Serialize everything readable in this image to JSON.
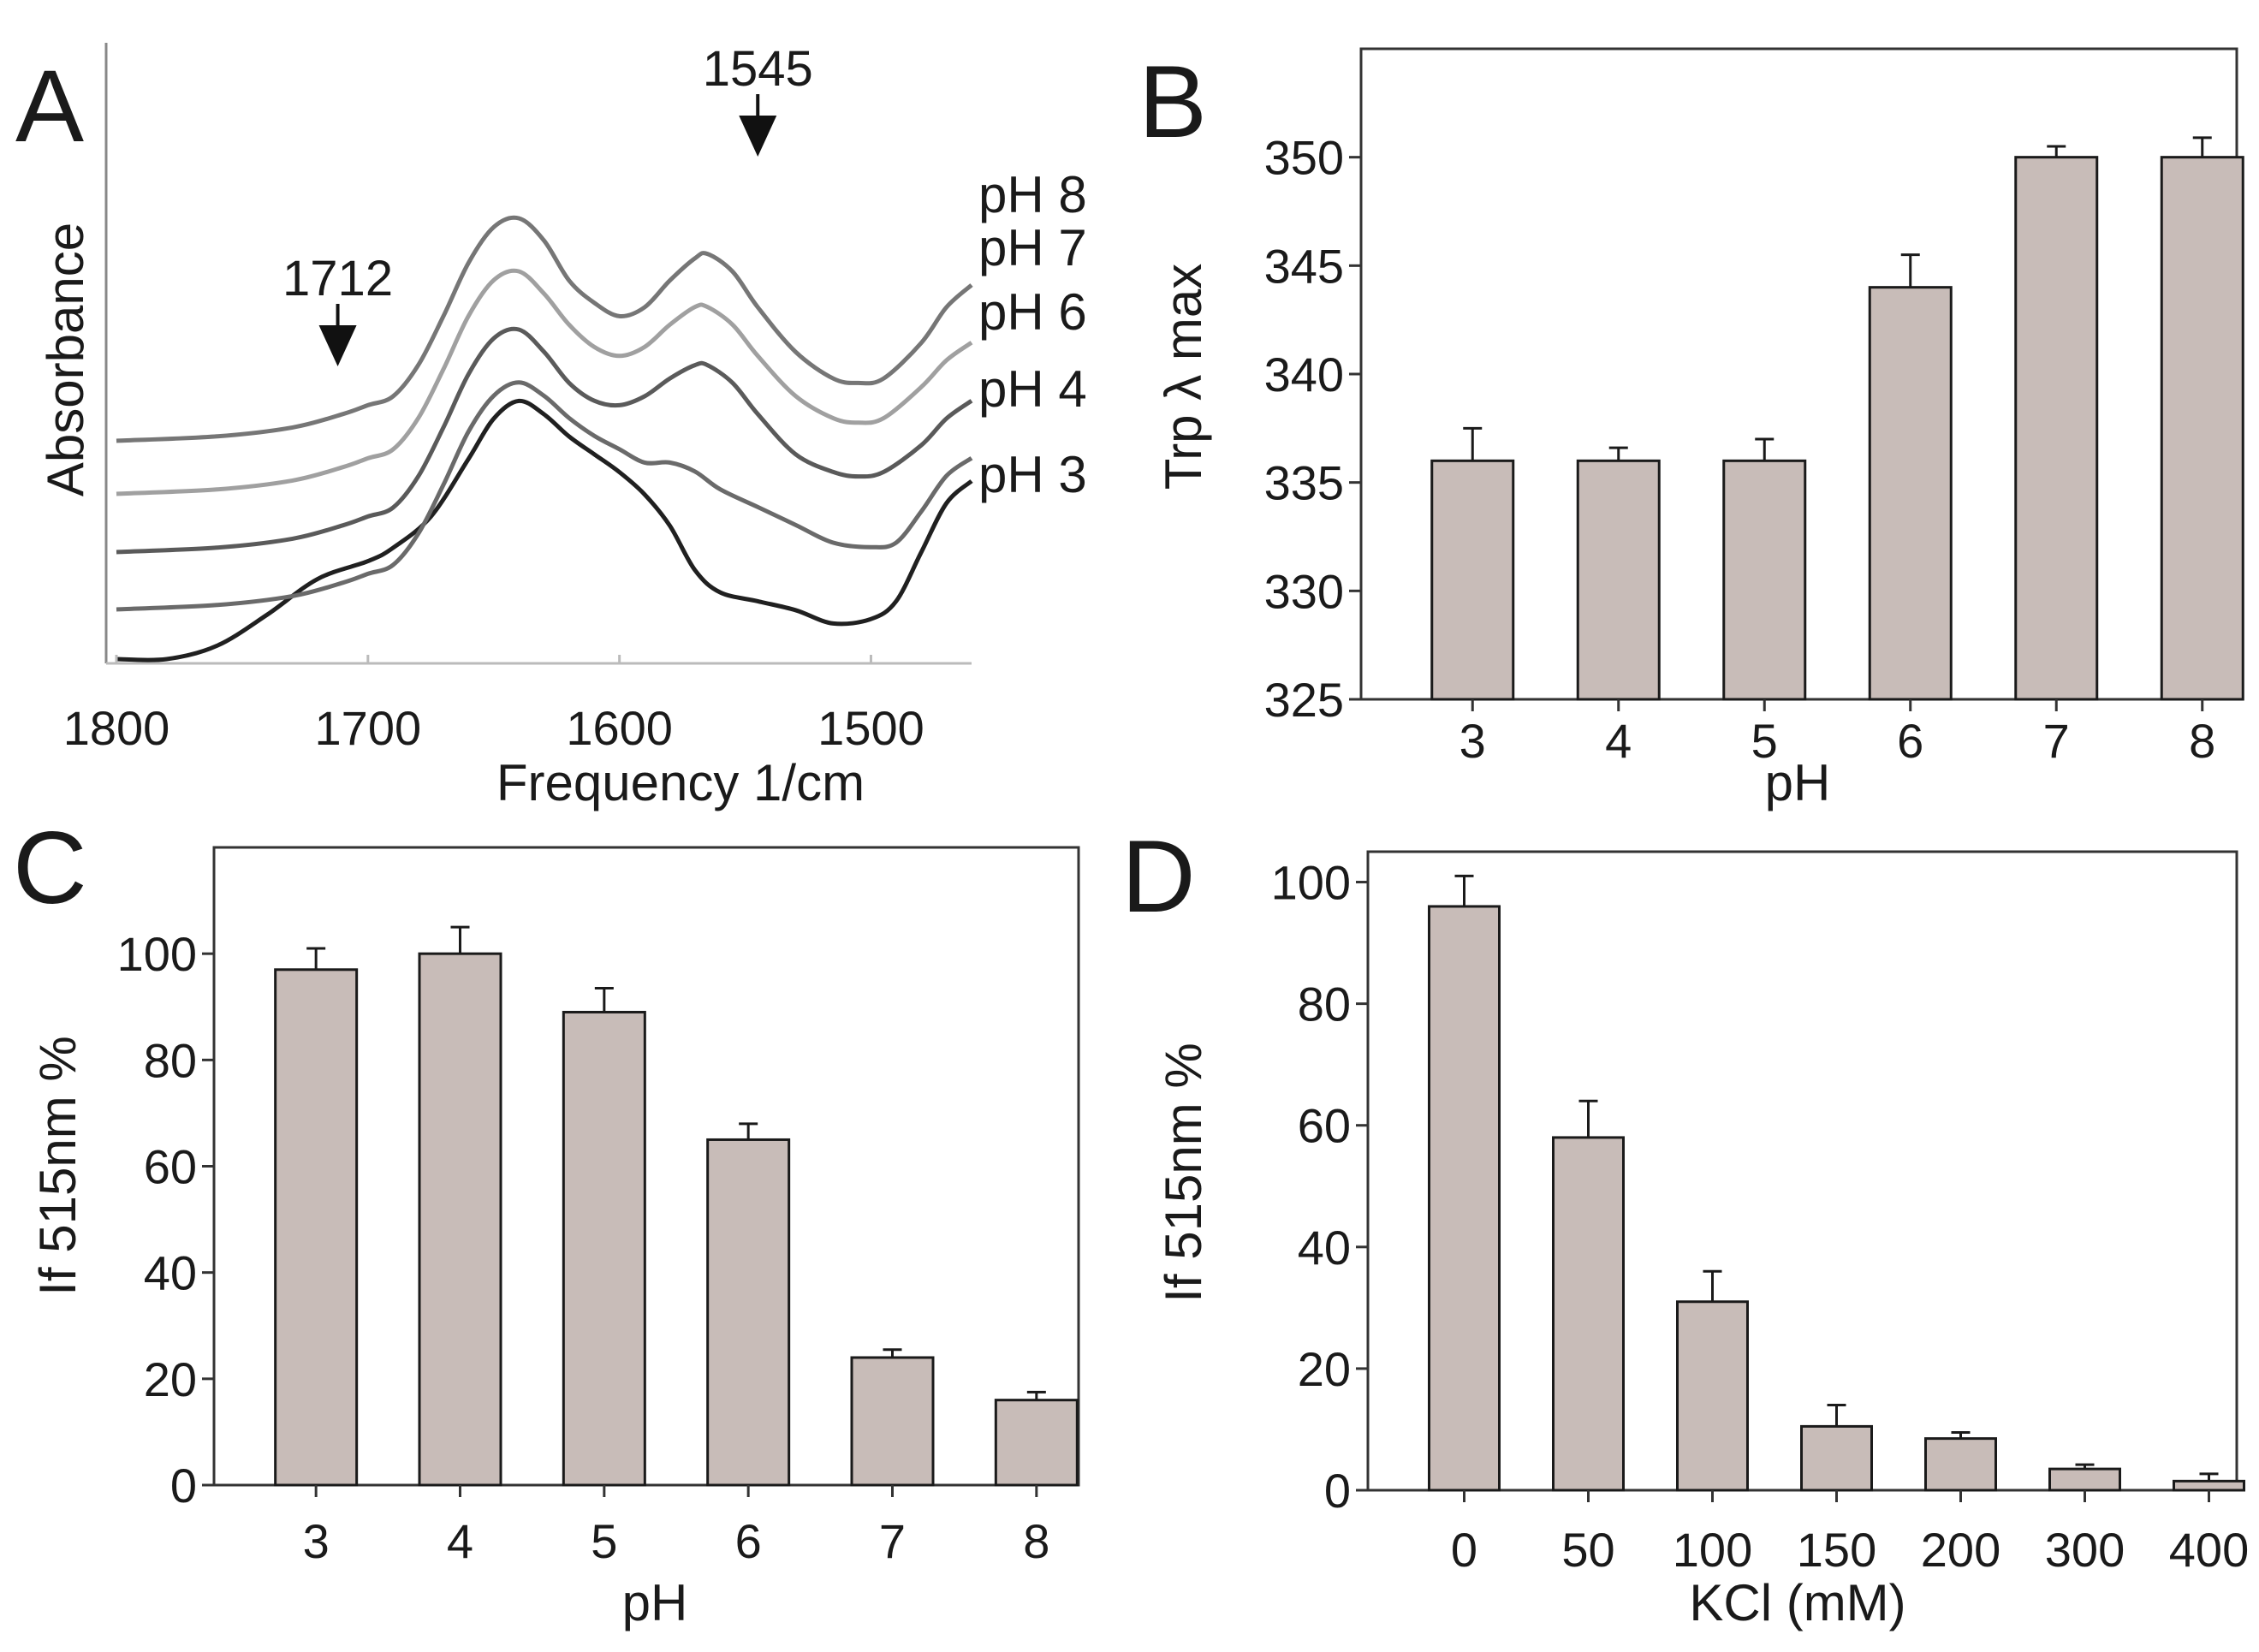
{
  "chart_data": [
    {
      "panel": "A",
      "type": "line",
      "title": "",
      "xlabel": "Frequency 1/cm",
      "ylabel": "Absorbance",
      "xlim": [
        1800,
        1460
      ],
      "x_ticks": [
        "1800",
        "1700",
        "1600",
        "1500"
      ],
      "annotations": [
        {
          "text": "1712",
          "x": 1712
        },
        {
          "text": "1545",
          "x": 1545
        }
      ],
      "series": [
        {
          "name": "pH 3",
          "color": "#202020",
          "points": [
            [
              1800,
              0.0
            ],
            [
              1780,
              0.0
            ],
            [
              1760,
              0.03
            ],
            [
              1740,
              0.1
            ],
            [
              1720,
              0.18
            ],
            [
              1700,
              0.22
            ],
            [
              1690,
              0.25
            ],
            [
              1675,
              0.32
            ],
            [
              1660,
              0.45
            ],
            [
              1650,
              0.54
            ],
            [
              1640,
              0.58
            ],
            [
              1630,
              0.55
            ],
            [
              1620,
              0.5
            ],
            [
              1610,
              0.46
            ],
            [
              1600,
              0.42
            ],
            [
              1590,
              0.37
            ],
            [
              1580,
              0.3
            ],
            [
              1570,
              0.2
            ],
            [
              1560,
              0.15
            ],
            [
              1545,
              0.13
            ],
            [
              1530,
              0.11
            ],
            [
              1515,
              0.08
            ],
            [
              1500,
              0.09
            ],
            [
              1490,
              0.13
            ],
            [
              1480,
              0.24
            ],
            [
              1470,
              0.35
            ],
            [
              1460,
              0.4
            ]
          ]
        },
        {
          "name": "pH 4",
          "color": "#6a6a6a",
          "points": [
            [
              1800,
              0.0
            ],
            [
              1760,
              0.01
            ],
            [
              1730,
              0.03
            ],
            [
              1710,
              0.06
            ],
            [
              1700,
              0.08
            ],
            [
              1690,
              0.1
            ],
            [
              1680,
              0.17
            ],
            [
              1670,
              0.28
            ],
            [
              1660,
              0.4
            ],
            [
              1650,
              0.48
            ],
            [
              1640,
              0.51
            ],
            [
              1630,
              0.48
            ],
            [
              1620,
              0.43
            ],
            [
              1610,
              0.39
            ],
            [
              1600,
              0.36
            ],
            [
              1590,
              0.33
            ],
            [
              1580,
              0.33
            ],
            [
              1570,
              0.31
            ],
            [
              1560,
              0.27
            ],
            [
              1545,
              0.23
            ],
            [
              1530,
              0.19
            ],
            [
              1515,
              0.15
            ],
            [
              1500,
              0.14
            ],
            [
              1490,
              0.15
            ],
            [
              1480,
              0.22
            ],
            [
              1470,
              0.3
            ],
            [
              1460,
              0.34
            ]
          ]
        },
        {
          "name": "pH 6",
          "color": "#5a5a5a",
          "points": [
            [
              1800,
              0.0
            ],
            [
              1760,
              0.01
            ],
            [
              1730,
              0.03
            ],
            [
              1710,
              0.06
            ],
            [
              1700,
              0.08
            ],
            [
              1690,
              0.1
            ],
            [
              1680,
              0.17
            ],
            [
              1670,
              0.28
            ],
            [
              1660,
              0.4
            ],
            [
              1650,
              0.48
            ],
            [
              1640,
              0.5
            ],
            [
              1630,
              0.45
            ],
            [
              1620,
              0.38
            ],
            [
              1610,
              0.34
            ],
            [
              1600,
              0.33
            ],
            [
              1590,
              0.35
            ],
            [
              1580,
              0.39
            ],
            [
              1570,
              0.42
            ],
            [
              1565,
              0.42
            ],
            [
              1555,
              0.38
            ],
            [
              1545,
              0.31
            ],
            [
              1530,
              0.22
            ],
            [
              1515,
              0.18
            ],
            [
              1505,
              0.17
            ],
            [
              1495,
              0.18
            ],
            [
              1480,
              0.24
            ],
            [
              1470,
              0.3
            ],
            [
              1460,
              0.34
            ]
          ]
        },
        {
          "name": "pH 7",
          "color": "#a0a0a0",
          "points": [
            [
              1800,
              0.0
            ],
            [
              1760,
              0.01
            ],
            [
              1730,
              0.03
            ],
            [
              1710,
              0.06
            ],
            [
              1700,
              0.08
            ],
            [
              1690,
              0.1
            ],
            [
              1680,
              0.17
            ],
            [
              1670,
              0.28
            ],
            [
              1660,
              0.4
            ],
            [
              1650,
              0.48
            ],
            [
              1640,
              0.5
            ],
            [
              1630,
              0.45
            ],
            [
              1620,
              0.38
            ],
            [
              1610,
              0.33
            ],
            [
              1600,
              0.31
            ],
            [
              1590,
              0.33
            ],
            [
              1580,
              0.38
            ],
            [
              1570,
              0.42
            ],
            [
              1565,
              0.42
            ],
            [
              1555,
              0.38
            ],
            [
              1545,
              0.31
            ],
            [
              1530,
              0.22
            ],
            [
              1515,
              0.17
            ],
            [
              1505,
              0.16
            ],
            [
              1495,
              0.17
            ],
            [
              1480,
              0.24
            ],
            [
              1470,
              0.3
            ],
            [
              1460,
              0.34
            ]
          ]
        },
        {
          "name": "pH 8",
          "color": "#767676",
          "points": [
            [
              1800,
              0.0
            ],
            [
              1760,
              0.01
            ],
            [
              1730,
              0.03
            ],
            [
              1710,
              0.06
            ],
            [
              1700,
              0.08
            ],
            [
              1690,
              0.1
            ],
            [
              1680,
              0.17
            ],
            [
              1670,
              0.28
            ],
            [
              1660,
              0.4
            ],
            [
              1650,
              0.48
            ],
            [
              1640,
              0.5
            ],
            [
              1630,
              0.45
            ],
            [
              1620,
              0.36
            ],
            [
              1610,
              0.31
            ],
            [
              1600,
              0.28
            ],
            [
              1590,
              0.3
            ],
            [
              1580,
              0.36
            ],
            [
              1570,
              0.41
            ],
            [
              1565,
              0.42
            ],
            [
              1555,
              0.38
            ],
            [
              1545,
              0.3
            ],
            [
              1530,
              0.2
            ],
            [
              1515,
              0.14
            ],
            [
              1505,
              0.13
            ],
            [
              1495,
              0.14
            ],
            [
              1480,
              0.22
            ],
            [
              1470,
              0.3
            ],
            [
              1460,
              0.35
            ]
          ]
        }
      ]
    },
    {
      "panel": "B",
      "type": "bar",
      "title": "",
      "xlabel": "pH",
      "ylabel": "Trp λ max",
      "ylim": [
        325,
        355
      ],
      "y_ticks": [
        325,
        330,
        335,
        340,
        345,
        350
      ],
      "categories": [
        "3",
        "4",
        "5",
        "6",
        "7",
        "8"
      ],
      "values": [
        336,
        336,
        336,
        344,
        350,
        350
      ],
      "errors": [
        1.5,
        0.6,
        1.0,
        1.5,
        0.5,
        0.9
      ],
      "bar_color": "#c8bcb8"
    },
    {
      "panel": "C",
      "type": "bar",
      "title": "",
      "xlabel": "pH",
      "ylabel": "If 515nm %",
      "ylim": [
        0,
        120
      ],
      "y_ticks": [
        0,
        20,
        40,
        60,
        80,
        100
      ],
      "categories": [
        "3",
        "4",
        "5",
        "6",
        "7",
        "8"
      ],
      "values": [
        97,
        100,
        89,
        65,
        24,
        16
      ],
      "errors": [
        4,
        5,
        4.5,
        3,
        1.5,
        1.5
      ],
      "bar_color": "#c8bcb8"
    },
    {
      "panel": "D",
      "type": "bar",
      "title": "",
      "xlabel": "KCl (mM)",
      "ylabel": "If 515nm %",
      "ylim": [
        0,
        105
      ],
      "y_ticks": [
        0,
        20,
        40,
        60,
        80,
        100
      ],
      "categories": [
        "0",
        "50",
        "100",
        "150",
        "200",
        "300",
        "400"
      ],
      "values": [
        96,
        58,
        31,
        10.5,
        8.5,
        3.5,
        1.5
      ],
      "errors": [
        5,
        6,
        5,
        3.5,
        1,
        0.7,
        1.2
      ],
      "bar_color": "#c8bcb8"
    }
  ]
}
